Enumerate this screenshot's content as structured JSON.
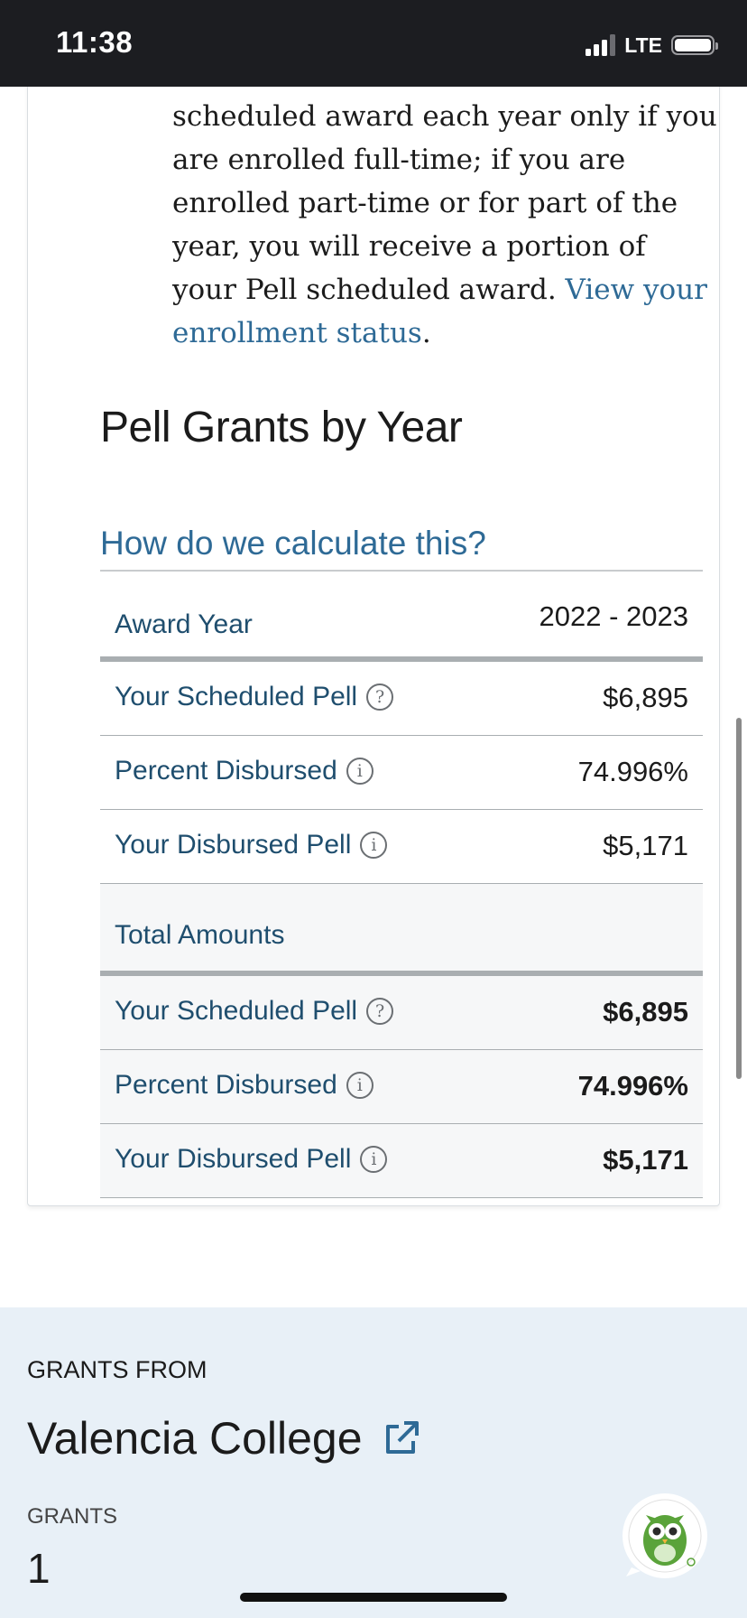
{
  "status_bar": {
    "time": "11:38",
    "network": "LTE"
  },
  "enrollment_note": {
    "lines": [
      "scheduled award each year only if you",
      "are enrolled full-time; if you are",
      "enrolled part-time or for part of the",
      "year, you will receive a portion of",
      "your Pell scheduled award. "
    ],
    "link_line_1": "View your",
    "link_line_2": "enrollment status",
    "period": "."
  },
  "section_title": "Pell Grants by Year",
  "calc_link": "How do we calculate this?",
  "table": {
    "header": {
      "label": "Award Year",
      "value": "2022 - 2023"
    },
    "year_rows": [
      {
        "label": "Your Scheduled Pell",
        "icon": "question-icon",
        "value": "$6,895"
      },
      {
        "label": "Percent Disbursed",
        "icon": "info-icon",
        "value": "74.996%"
      },
      {
        "label": "Your Disbursed Pell",
        "icon": "info-icon",
        "value": "$5,171"
      }
    ],
    "totals_header": "Total Amounts",
    "total_rows": [
      {
        "label": "Your Scheduled Pell",
        "icon": "question-icon",
        "value": "$6,895"
      },
      {
        "label": "Percent Disbursed",
        "icon": "info-icon",
        "value": "74.996%"
      },
      {
        "label": "Your Disbursed Pell",
        "icon": "info-icon",
        "value": "$5,171"
      }
    ]
  },
  "grants_section": {
    "heading": "GRANTS FROM",
    "school": "Valencia College",
    "count_label": "GRANTS",
    "count": "1"
  },
  "colors": {
    "link": "#2e6a96",
    "label": "#1f4e6e",
    "status_bar": "#1c1d21",
    "bottom_bg": "#e8f0f7",
    "owl_green": "#5aa33a"
  }
}
